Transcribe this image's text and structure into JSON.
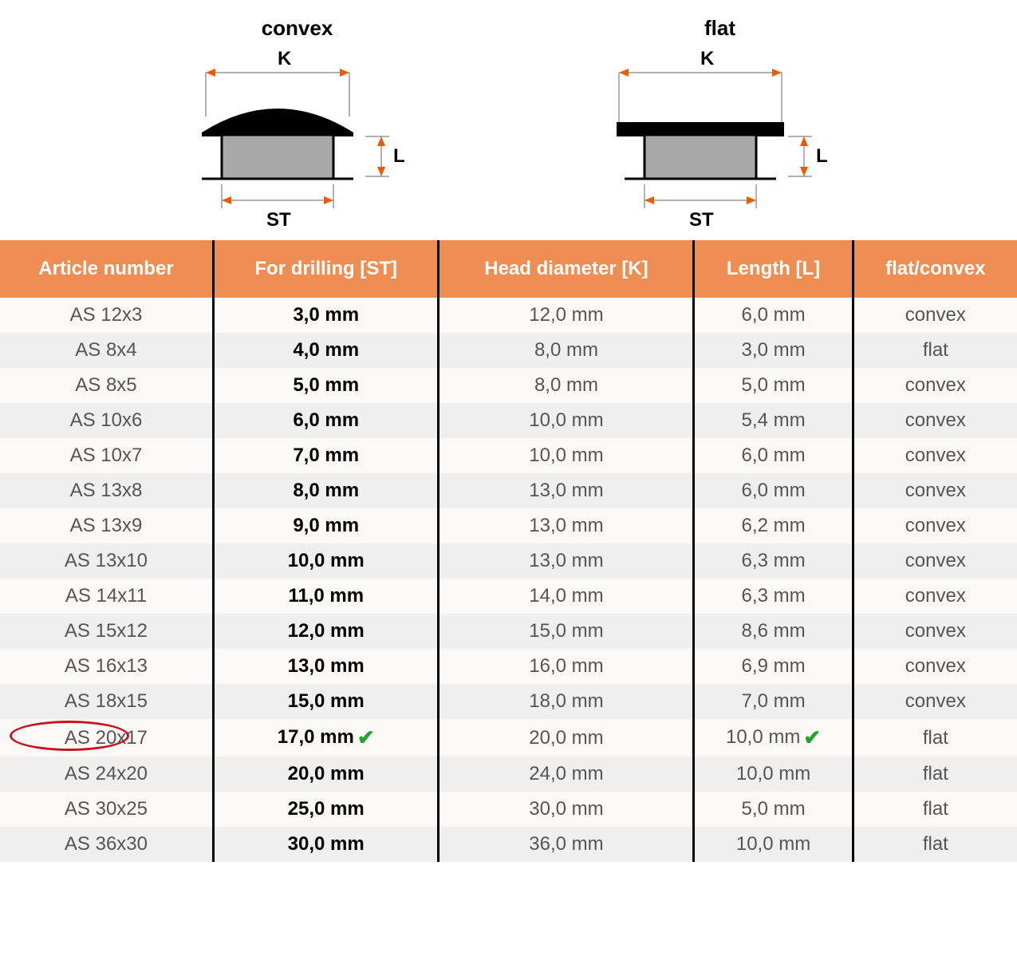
{
  "diagrams": {
    "convex": {
      "title": "convex",
      "K": "K",
      "ST": "ST",
      "L": "L"
    },
    "flat": {
      "title": "flat",
      "K": "K",
      "ST": "ST",
      "L": "L"
    }
  },
  "colors": {
    "header_bg": "#ee8e53",
    "header_fg": "#ffffff",
    "row_odd": "#fbf9f7",
    "row_even": "#efefef",
    "border": "#000000",
    "circle": "#c81420",
    "check": "#22a52c",
    "dim_line": "#ea5a00",
    "shape_fill": "#000000",
    "shaft_fill": "#a8a8a8"
  },
  "table": {
    "columns": [
      "Article number",
      "For drilling [ST]",
      "Head diameter [K]",
      "Length [L]",
      "flat/convex"
    ],
    "highlight_row": 12,
    "check_columns_on_highlight": [
      1,
      3
    ],
    "rows": [
      [
        "AS 12x3",
        "3,0 mm",
        "12,0 mm",
        "6,0 mm",
        "convex"
      ],
      [
        "AS 8x4",
        "4,0 mm",
        "8,0 mm",
        "3,0 mm",
        "flat"
      ],
      [
        "AS 8x5",
        "5,0 mm",
        "8,0 mm",
        "5,0 mm",
        "convex"
      ],
      [
        "AS 10x6",
        "6,0 mm",
        "10,0 mm",
        "5,4 mm",
        "convex"
      ],
      [
        "AS 10x7",
        "7,0 mm",
        "10,0 mm",
        "6,0 mm",
        "convex"
      ],
      [
        "AS 13x8",
        "8,0 mm",
        "13,0 mm",
        "6,0 mm",
        "convex"
      ],
      [
        "AS 13x9",
        "9,0 mm",
        "13,0 mm",
        "6,2 mm",
        "convex"
      ],
      [
        "AS 13x10",
        "10,0 mm",
        "13,0 mm",
        "6,3 mm",
        "convex"
      ],
      [
        "AS 14x11",
        "11,0 mm",
        "14,0 mm",
        "6,3 mm",
        "convex"
      ],
      [
        "AS 15x12",
        "12,0 mm",
        "15,0 mm",
        "8,6 mm",
        "convex"
      ],
      [
        "AS 16x13",
        "13,0 mm",
        "16,0 mm",
        "6,9 mm",
        "convex"
      ],
      [
        "AS 18x15",
        "15,0 mm",
        "18,0 mm",
        "7,0 mm",
        "convex"
      ],
      [
        "AS 20x17",
        "17,0 mm",
        "20,0 mm",
        "10,0 mm",
        "flat"
      ],
      [
        "AS 24x20",
        "20,0 mm",
        "24,0 mm",
        "10,0 mm",
        "flat"
      ],
      [
        "AS 30x25",
        "25,0 mm",
        "30,0 mm",
        "5,0 mm",
        "flat"
      ],
      [
        "AS 36x30",
        "30,0 mm",
        "36,0 mm",
        "10,0 mm",
        "flat"
      ]
    ]
  }
}
